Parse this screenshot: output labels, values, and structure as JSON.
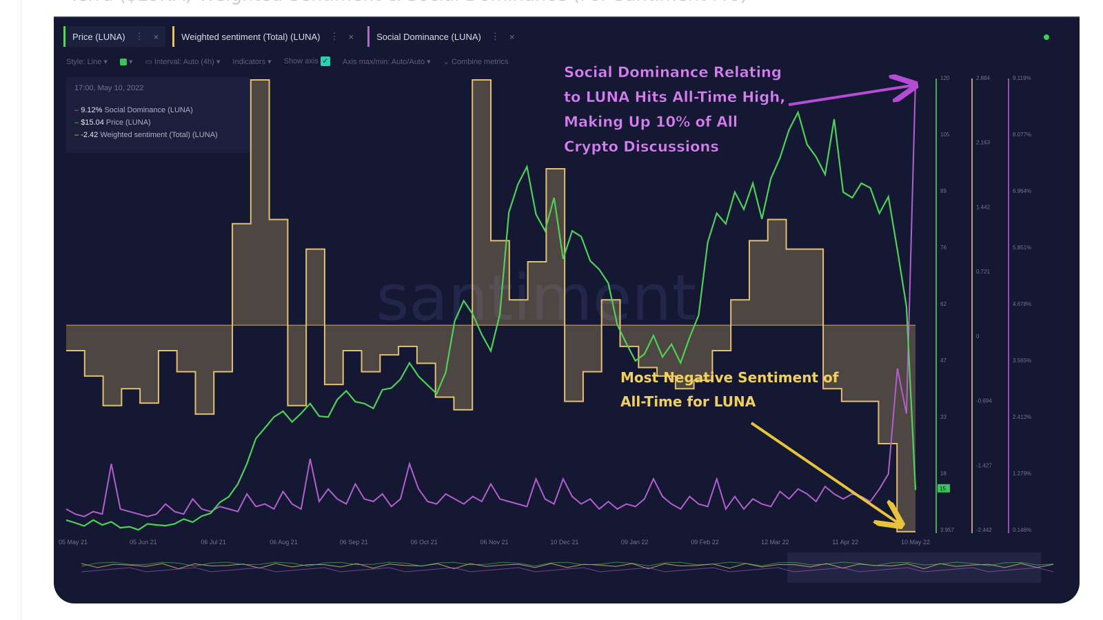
{
  "title": "Terra ($LUNA) Weighted Sentiment & Social Dominance (For Santiment Pro)",
  "tabs": [
    {
      "label": "Price (LUNA)"
    },
    {
      "label": "Weighted sentiment (Total) (LUNA)"
    },
    {
      "label": "Social Dominance (LUNA)"
    }
  ],
  "toolbar": {
    "style": "Style: Line",
    "interval": "Interval: Auto (4h)",
    "indicators": "Indicators",
    "show_axis": "Show axis",
    "axis_maxmin": "Axis max/min: Auto/Auto",
    "combine": "Combine metrics"
  },
  "tooltip": {
    "date": "17:00, May 10, 2022",
    "rows": [
      {
        "value": "9.12%",
        "label": "Social Dominance (LUNA)",
        "color": "#c15fd6"
      },
      {
        "value": "$15.04",
        "label": "Price (LUNA)",
        "color": "#5ad35e"
      },
      {
        "value": "-2.42",
        "label": "Weighted sentiment (Total) (LUNA)",
        "color": "#e2c071"
      }
    ]
  },
  "annotations": {
    "social": [
      "Social Dominance Relating",
      "to LUNA Hits All-Time High,",
      "Making Up 10% of All",
      "Crypto Discussions"
    ],
    "sentiment": [
      "Most Negative Sentiment of",
      "All-Time for LUNA"
    ]
  },
  "watermark": "santiment",
  "colors": {
    "price": "#4fd158",
    "sentiment": "#e2c071",
    "social": "#b45fcf",
    "background": "#151832",
    "arrow_social": "#b64bd6",
    "arrow_sentiment": "#e8c43e"
  },
  "chart_data": {
    "type": "line",
    "x_ticks": [
      "05 May 21",
      "05 Jun 21",
      "06 Jul 21",
      "06 Aug 21",
      "06 Sep 21",
      "06 Oct 21",
      "06 Nov 21",
      "10 Dec 21",
      "09 Jan 22",
      "09 Feb 22",
      "12 Mar 22",
      "11 Apr 22",
      "10 May 22"
    ],
    "price_axis": {
      "ticks": [
        "120",
        "105",
        "89",
        "76",
        "62",
        "47",
        "33",
        "18",
        "3.957"
      ],
      "range": [
        3.957,
        120
      ]
    },
    "sentiment_axis": {
      "ticks": [
        "2.884",
        "2.163",
        "1.442",
        "0.721",
        "0",
        "-0.694",
        "-1.427",
        "-2.442"
      ],
      "range": [
        -2.442,
        2.884
      ]
    },
    "social_axis": {
      "ticks": [
        "9.119%",
        "8.077%",
        "6.964%",
        "5.851%",
        "4.678%",
        "3.565%",
        "2.412%",
        "1.279%",
        "0.146%"
      ],
      "range": [
        0.146,
        9.119
      ]
    },
    "price_marker": "15",
    "series": [
      {
        "name": "Price (LUNA)",
        "values": [
          7,
          6,
          6,
          7,
          6,
          6,
          5,
          5,
          5,
          6,
          6,
          5,
          6,
          7,
          7,
          8,
          9,
          11,
          13,
          16,
          22,
          28,
          31,
          33,
          35,
          32,
          35,
          37,
          34,
          33,
          38,
          40,
          38,
          37,
          36,
          40,
          41,
          43,
          48,
          44,
          42,
          39,
          45,
          58,
          64,
          60,
          55,
          50,
          60,
          86,
          94,
          98,
          86,
          81,
          90,
          74,
          82,
          80,
          74,
          71,
          68,
          57,
          53,
          48,
          50,
          54,
          49,
          52,
          48,
          54,
          60,
          78,
          86,
          83,
          92,
          87,
          94,
          84,
          95,
          100,
          108,
          112,
          104,
          100,
          96,
          110,
          92,
          90,
          94,
          92,
          86,
          90,
          77,
          62,
          15
        ]
      },
      {
        "name": "Weighted sentiment (Total) (LUNA)",
        "steps": [
          -0.3,
          -0.6,
          -0.95,
          -0.75,
          -0.92,
          -0.3,
          -0.55,
          -1.05,
          -0.55,
          1.2,
          2.9,
          1.25,
          -0.95,
          0.9,
          -0.7,
          -0.3,
          -0.55,
          -0.35,
          -0.25,
          -0.45,
          -0.85,
          -1.0,
          2.9,
          1.0,
          0.3,
          0.75,
          1.85,
          -0.9,
          -0.55,
          0.3,
          -0.25,
          -0.5,
          -0.6,
          -0.75,
          -0.65,
          -0.3,
          0.3,
          1.0,
          1.25,
          0.9,
          0.9,
          -0.75,
          -0.9,
          -0.9,
          -1.4,
          -2.44
        ]
      },
      {
        "name": "Social Dominance (LUNA)",
        "values": [
          0.6,
          0.5,
          0.45,
          0.55,
          0.5,
          1.5,
          0.6,
          0.55,
          0.5,
          0.45,
          0.5,
          0.7,
          0.55,
          0.5,
          0.8,
          0.6,
          0.55,
          0.65,
          0.6,
          0.55,
          0.9,
          0.65,
          0.7,
          0.6,
          0.95,
          0.7,
          0.6,
          1.6,
          0.75,
          1.0,
          0.8,
          0.7,
          1.1,
          0.8,
          0.75,
          0.9,
          0.65,
          0.8,
          1.5,
          1.0,
          0.75,
          0.7,
          0.9,
          0.8,
          0.7,
          0.85,
          0.75,
          1.1,
          0.8,
          0.75,
          0.7,
          0.65,
          1.2,
          0.8,
          0.7,
          1.2,
          0.85,
          0.7,
          0.8,
          0.6,
          0.75,
          0.6,
          0.7,
          0.65,
          0.8,
          1.2,
          0.85,
          0.7,
          0.6,
          0.85,
          0.7,
          0.65,
          1.2,
          0.6,
          0.85,
          0.6,
          0.8,
          0.7,
          0.65,
          0.95,
          0.8,
          1.0,
          0.9,
          0.75,
          1.05,
          0.9,
          0.8,
          0.9,
          0.85,
          0.75,
          1.0,
          1.3,
          3.4,
          2.5,
          9.119
        ]
      }
    ]
  }
}
